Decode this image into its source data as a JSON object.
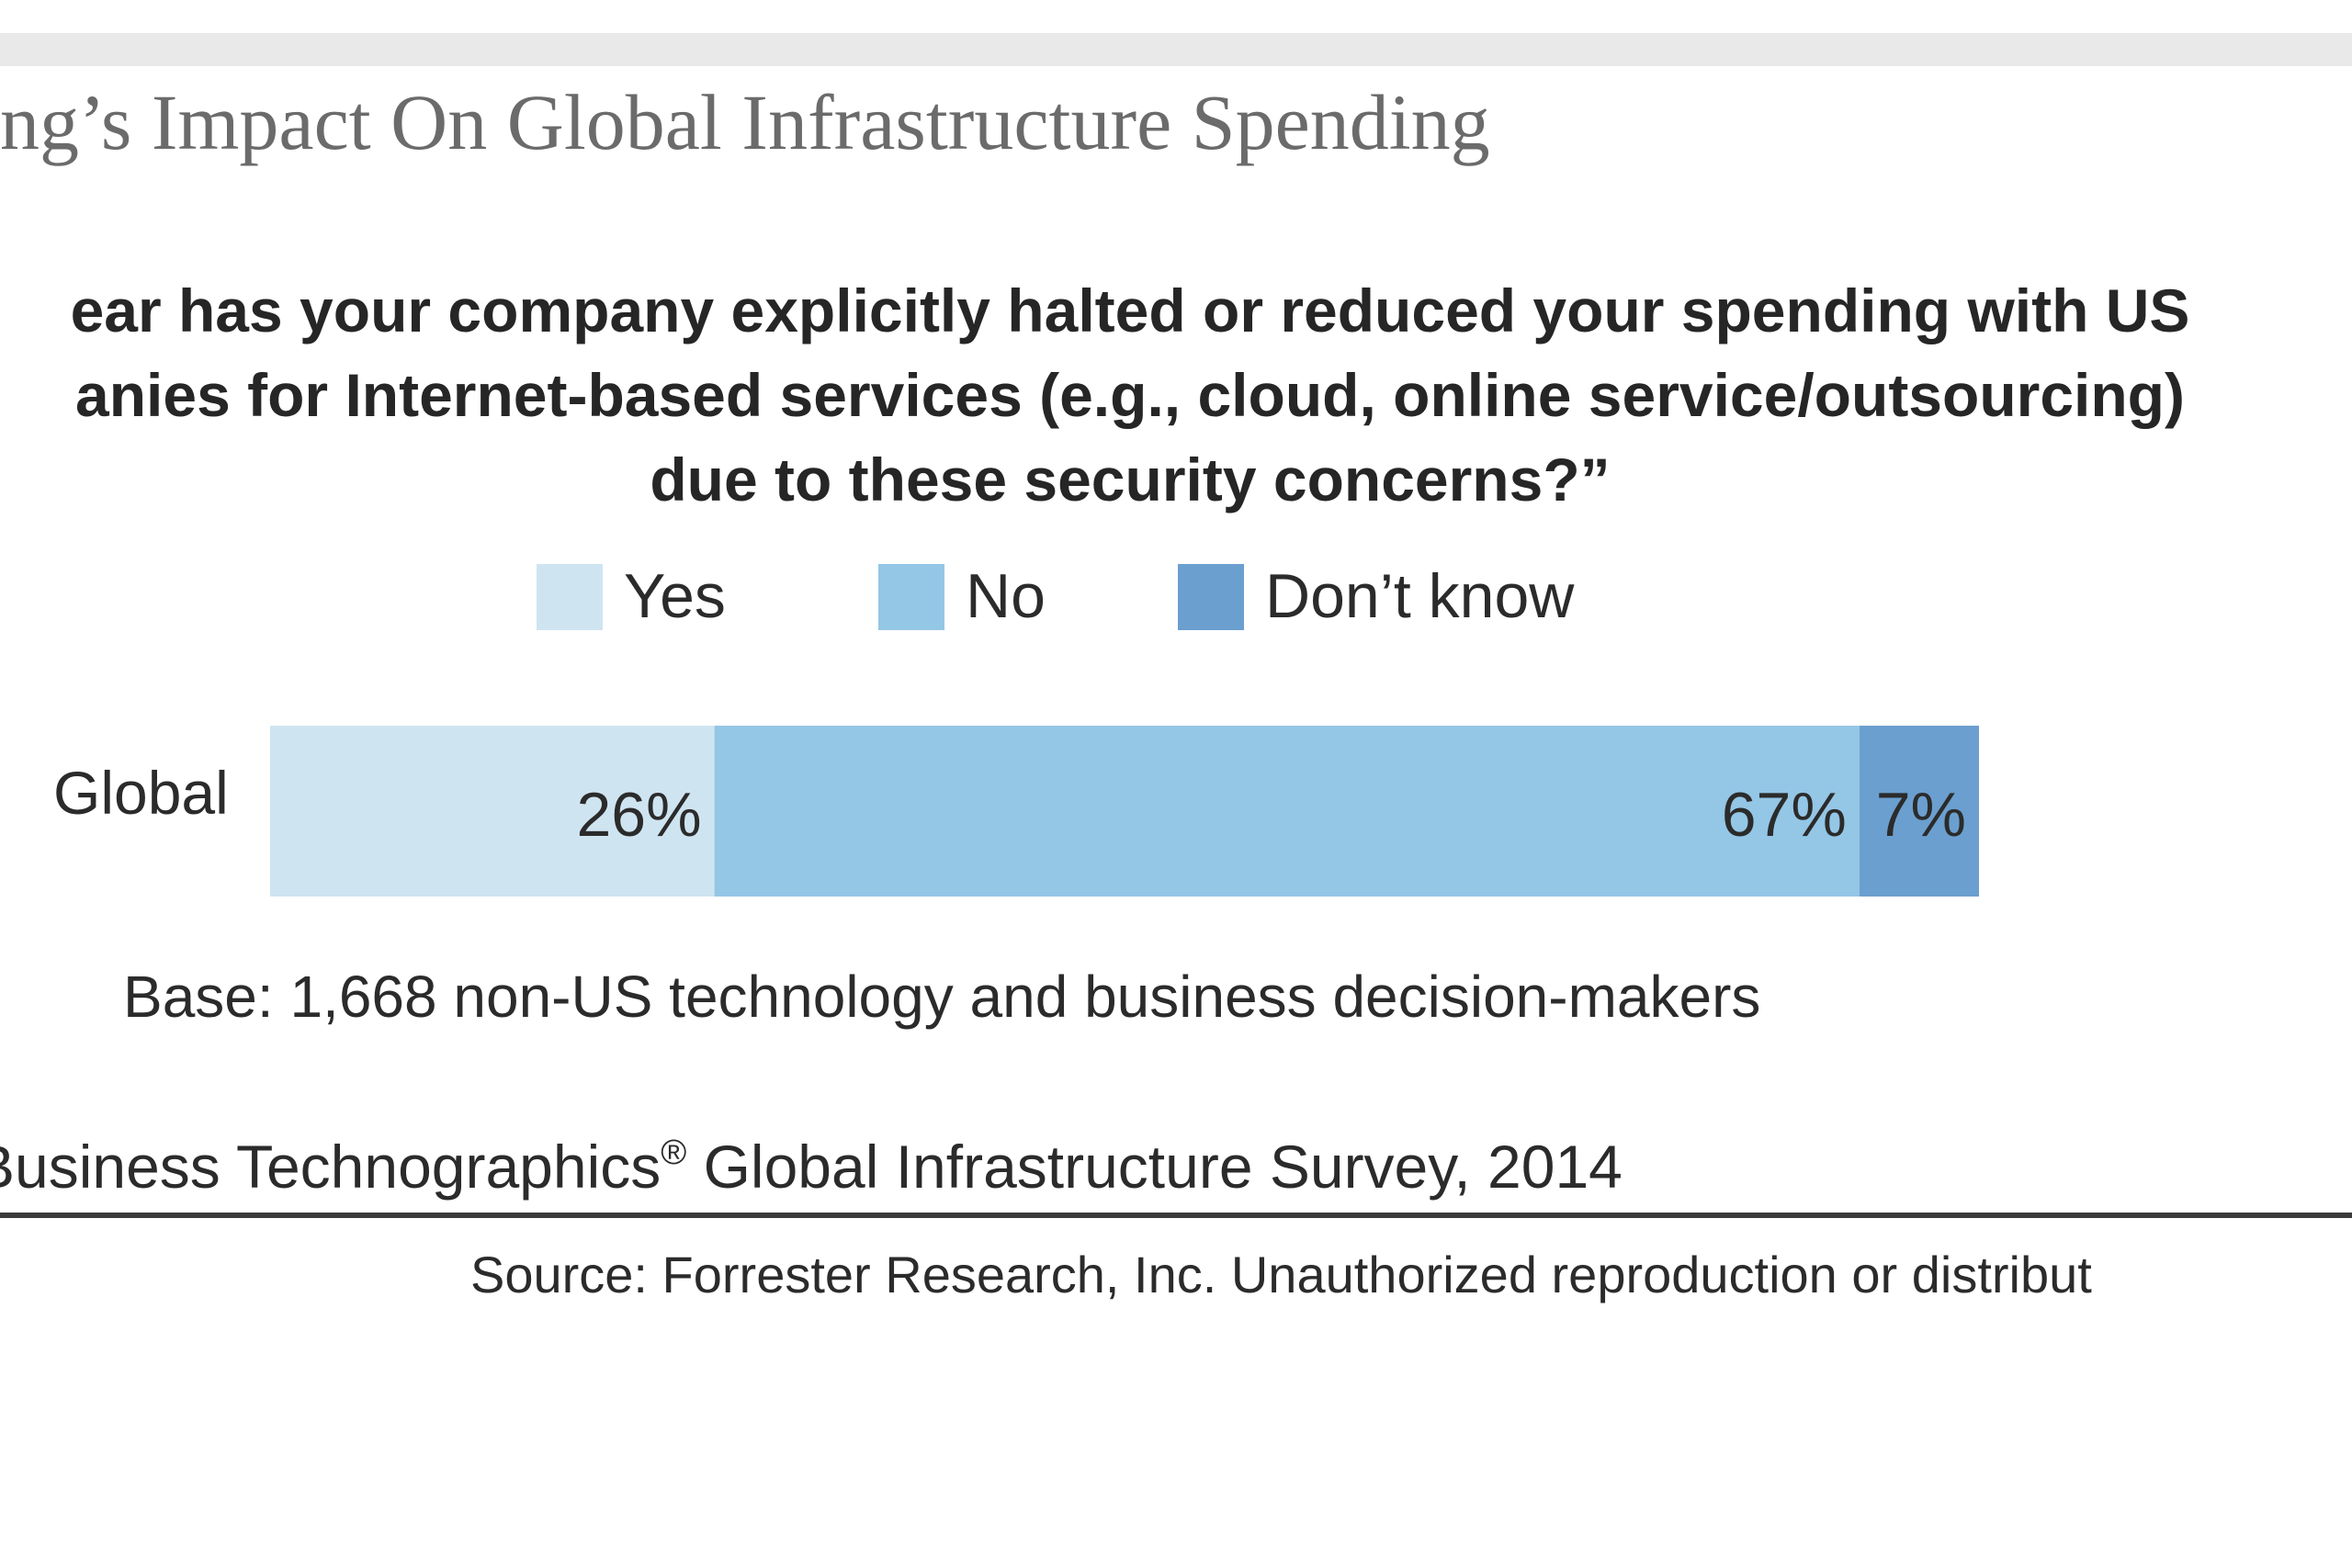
{
  "figure": {
    "title": "ng’s Impact On Global Infrastructure Spending",
    "question_lines": [
      "ear has your company explicitly halted or reduced your spending with US",
      "anies for Internet-based services (e.g., cloud, online service/outsourcing)",
      "due to these security concerns?”"
    ],
    "base_note": "Base: 1,668 non-US technology and business decision-makers",
    "survey_note": "Business Technographics",
    "survey_mark": "®",
    "survey_note_rest": " Global Infrastructure Survey, 2014",
    "source_note": "Source: Forrester Research, Inc. Unauthorized reproduction or distribut"
  },
  "chart_data": {
    "type": "bar",
    "orientation": "horizontal",
    "stacked": true,
    "categories": [
      "Global"
    ],
    "series": [
      {
        "name": "Yes",
        "values": [
          26
        ],
        "label": "26%",
        "color": "#cfe4f1"
      },
      {
        "name": "No",
        "values": [
          67
        ],
        "label": "67%",
        "color": "#94c6e6"
      },
      {
        "name": "Don’t know",
        "values": [
          7
        ],
        "label": "7%",
        "color": "#6b9fcf"
      }
    ],
    "unit": "%",
    "xlim": [
      0,
      100
    ],
    "legend_position": "top",
    "grid": false
  }
}
